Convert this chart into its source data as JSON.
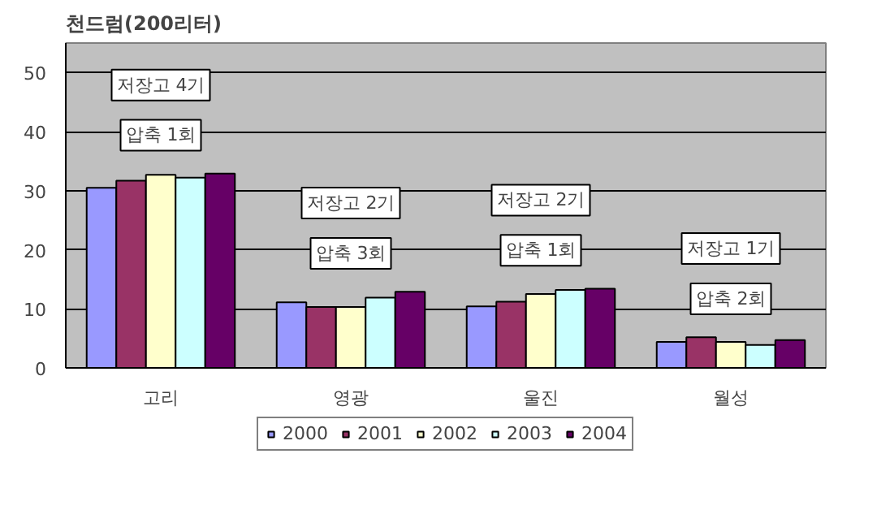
{
  "chart_data": {
    "type": "bar",
    "title": "천드럼(200리터)",
    "categories": [
      "고리",
      "영광",
      "울진",
      "월성"
    ],
    "series": [
      {
        "name": "2000",
        "color": "#9999ff",
        "values": [
          30.5,
          11.1,
          10.4,
          4.4
        ]
      },
      {
        "name": "2001",
        "color": "#993366",
        "values": [
          31.7,
          10.3,
          11.2,
          5.2
        ]
      },
      {
        "name": "2002",
        "color": "#ffffcc",
        "values": [
          32.7,
          10.3,
          12.5,
          4.4
        ]
      },
      {
        "name": "2003",
        "color": "#ccffff",
        "values": [
          32.2,
          11.9,
          13.2,
          3.9
        ]
      },
      {
        "name": "2004",
        "color": "#660066",
        "values": [
          32.9,
          12.9,
          13.4,
          4.7
        ]
      }
    ],
    "ylim": [
      0,
      55
    ],
    "yticks": [
      0,
      10,
      20,
      30,
      40,
      50
    ],
    "grid": "y",
    "legend": "bottom",
    "annotations": [
      "저장고 4기",
      "압축 1회",
      "저장고 2기",
      "압축 3회",
      "저장고 2기",
      "압축 1회",
      "저장고 1기",
      "압축 2회"
    ]
  }
}
